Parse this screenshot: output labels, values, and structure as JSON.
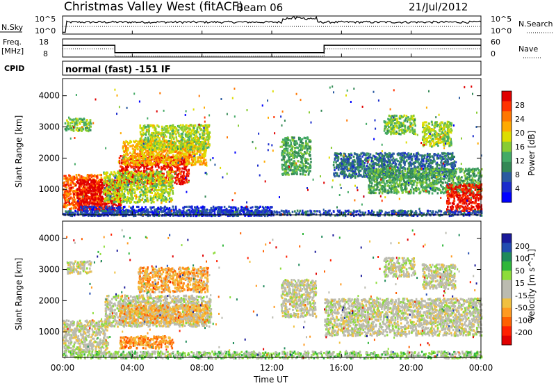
{
  "header": {
    "station": "Christmas Valley West (fitACF)",
    "beam": "Beam 06",
    "date": "21/Jul/2012"
  },
  "strip_nsky": {
    "left_label": "N.Sky",
    "right_label": "N.Search",
    "ticks_left": [
      "10^5",
      "10^0"
    ],
    "ticks_right": [
      "10^5",
      "10^0"
    ]
  },
  "strip_freq": {
    "left_label_1": "Freq.",
    "left_label_2": "[MHz]",
    "right_label": "Nave",
    "ticks_left": [
      "18",
      "8"
    ],
    "ticks_right": [
      "60",
      "0"
    ]
  },
  "cpid": {
    "label": "CPID",
    "value": "normal (fast) -151 IF"
  },
  "xaxis": {
    "label": "Time UT",
    "ticks": [
      "00:00",
      "04:00",
      "08:00",
      "12:00",
      "16:00",
      "20:00",
      "00:00"
    ]
  },
  "panel_power": {
    "ylabel": "Slant Range [km]",
    "cbar_label": "Power [dB]",
    "cbar_ticks": [
      "28",
      "24",
      "20",
      "16",
      "12",
      "8",
      "4"
    ],
    "cbar_colors": [
      "#e00000",
      "#ff3300",
      "#ff7700",
      "#ffaa00",
      "#dddd00",
      "#88cc33",
      "#44aa66",
      "#338855",
      "#2a5aa0",
      "#1a2ccc",
      "#0000ff"
    ]
  },
  "panel_velocity": {
    "ylabel": "Slant Range [km]",
    "cbar_label": "Velocity [m s^-1]",
    "cbar_ticks": [
      "200",
      "100",
      "50",
      "15",
      "-15",
      "-50",
      "-100",
      "-200"
    ],
    "cbar_colors": [
      "#1a1a9a",
      "#224cb0",
      "#1f8a5a",
      "#2fb63a",
      "#8ddc3a",
      "#bbbbb0",
      "#bbbbb0",
      "#f0c040",
      "#ff9a20",
      "#ff6000",
      "#ff2000",
      "#e00000"
    ]
  },
  "chart_data": [
    {
      "type": "line",
      "title": "Christmas Valley West (fitACF)",
      "series": [
        {
          "name": "N.Sky"
        },
        {
          "name": "N.Search"
        }
      ],
      "ylim_log10": [
        0,
        5
      ],
      "x_range_hours": [
        0,
        24
      ]
    },
    {
      "type": "line",
      "series": [
        {
          "name": "Freq.",
          "unit": "MHz"
        },
        {
          "name": "Nave"
        }
      ],
      "ylim": [
        8,
        18
      ],
      "ylim_right": [
        0,
        60
      ],
      "x_range_hours": [
        0,
        24
      ],
      "freq_steps": [
        [
          0,
          3,
          15
        ],
        [
          3,
          15,
          10
        ],
        [
          15,
          24,
          15
        ]
      ]
    },
    {
      "type": "heatmap",
      "ylabel": "Slant Range [km]",
      "xlabel": "Time UT",
      "x_range_hours": [
        0,
        24
      ],
      "ylim": [
        180,
        4550
      ],
      "yticks": [
        1000,
        2000,
        3000,
        4000
      ],
      "colorbar": "Power [dB]",
      "colorbar_range": [
        0,
        30
      ],
      "patches": [
        {
          "t": [
            0.1,
            1.6
          ],
          "r": [
            2900,
            3300
          ],
          "value": 14
        },
        {
          "t": [
            0.0,
            2.2
          ],
          "r": [
            400,
            1500
          ],
          "value": 24
        },
        {
          "t": [
            0.8,
            3.3
          ],
          "r": [
            350,
            1350
          ],
          "value": 30
        },
        {
          "t": [
            3.2,
            7.2
          ],
          "r": [
            1200,
            2100
          ],
          "value": 28
        },
        {
          "t": [
            3.4,
            8.2
          ],
          "r": [
            1800,
            2600
          ],
          "value": 20
        },
        {
          "t": [
            4.4,
            8.4
          ],
          "r": [
            2300,
            3100
          ],
          "value": 16
        },
        {
          "t": [
            2.3,
            6.3
          ],
          "r": [
            600,
            1600
          ],
          "value": 16
        },
        {
          "t": [
            1.0,
            12.0
          ],
          "r": [
            180,
            480
          ],
          "value": 4
        },
        {
          "t": [
            12.5,
            14.2
          ],
          "r": [
            1500,
            2700
          ],
          "value": 12
        },
        {
          "t": [
            15.5,
            22.5
          ],
          "r": [
            1400,
            2200
          ],
          "value": 8
        },
        {
          "t": [
            17.5,
            24.0
          ],
          "r": [
            900,
            1700
          ],
          "value": 12
        },
        {
          "t": [
            18.4,
            20.2
          ],
          "r": [
            2800,
            3400
          ],
          "value": 14
        },
        {
          "t": [
            20.6,
            22.3
          ],
          "r": [
            2400,
            3200
          ],
          "value": 16
        },
        {
          "t": [
            22.0,
            24.0
          ],
          "r": [
            300,
            1200
          ],
          "value": 28
        },
        {
          "t": [
            0.0,
            24.0
          ],
          "r": [
            180,
            350
          ],
          "value": 6
        }
      ]
    },
    {
      "type": "heatmap",
      "ylabel": "Slant Range [km]",
      "xlabel": "Time UT",
      "x_range_hours": [
        0,
        24
      ],
      "ylim": [
        180,
        4550
      ],
      "yticks": [
        1000,
        2000,
        3000,
        4000
      ],
      "colorbar": "Velocity [m s^-1]",
      "colorbar_range": [
        -200,
        200
      ],
      "patches": [
        {
          "t": [
            0.2,
            1.6
          ],
          "r": [
            2900,
            3300
          ],
          "value": 0
        },
        {
          "t": [
            0.0,
            2.6
          ],
          "r": [
            350,
            1400
          ],
          "value": 0
        },
        {
          "t": [
            2.4,
            8.5
          ],
          "r": [
            1200,
            2200
          ],
          "value": 0
        },
        {
          "t": [
            3.2,
            8.3
          ],
          "r": [
            1300,
            1900
          ],
          "value": -60
        },
        {
          "t": [
            4.3,
            8.3
          ],
          "r": [
            2300,
            3100
          ],
          "value": -70
        },
        {
          "t": [
            3.2,
            6.3
          ],
          "r": [
            500,
            900
          ],
          "value": -80
        },
        {
          "t": [
            12.5,
            14.5
          ],
          "r": [
            1500,
            2700
          ],
          "value": 0
        },
        {
          "t": [
            15.0,
            24.0
          ],
          "r": [
            900,
            2100
          ],
          "value": 0
        },
        {
          "t": [
            18.4,
            20.2
          ],
          "r": [
            2800,
            3400
          ],
          "value": 0
        },
        {
          "t": [
            20.6,
            22.5
          ],
          "r": [
            2400,
            3200
          ],
          "value": 0
        },
        {
          "t": [
            0.0,
            24.0
          ],
          "r": [
            180,
            400
          ],
          "value": 40
        }
      ]
    }
  ]
}
